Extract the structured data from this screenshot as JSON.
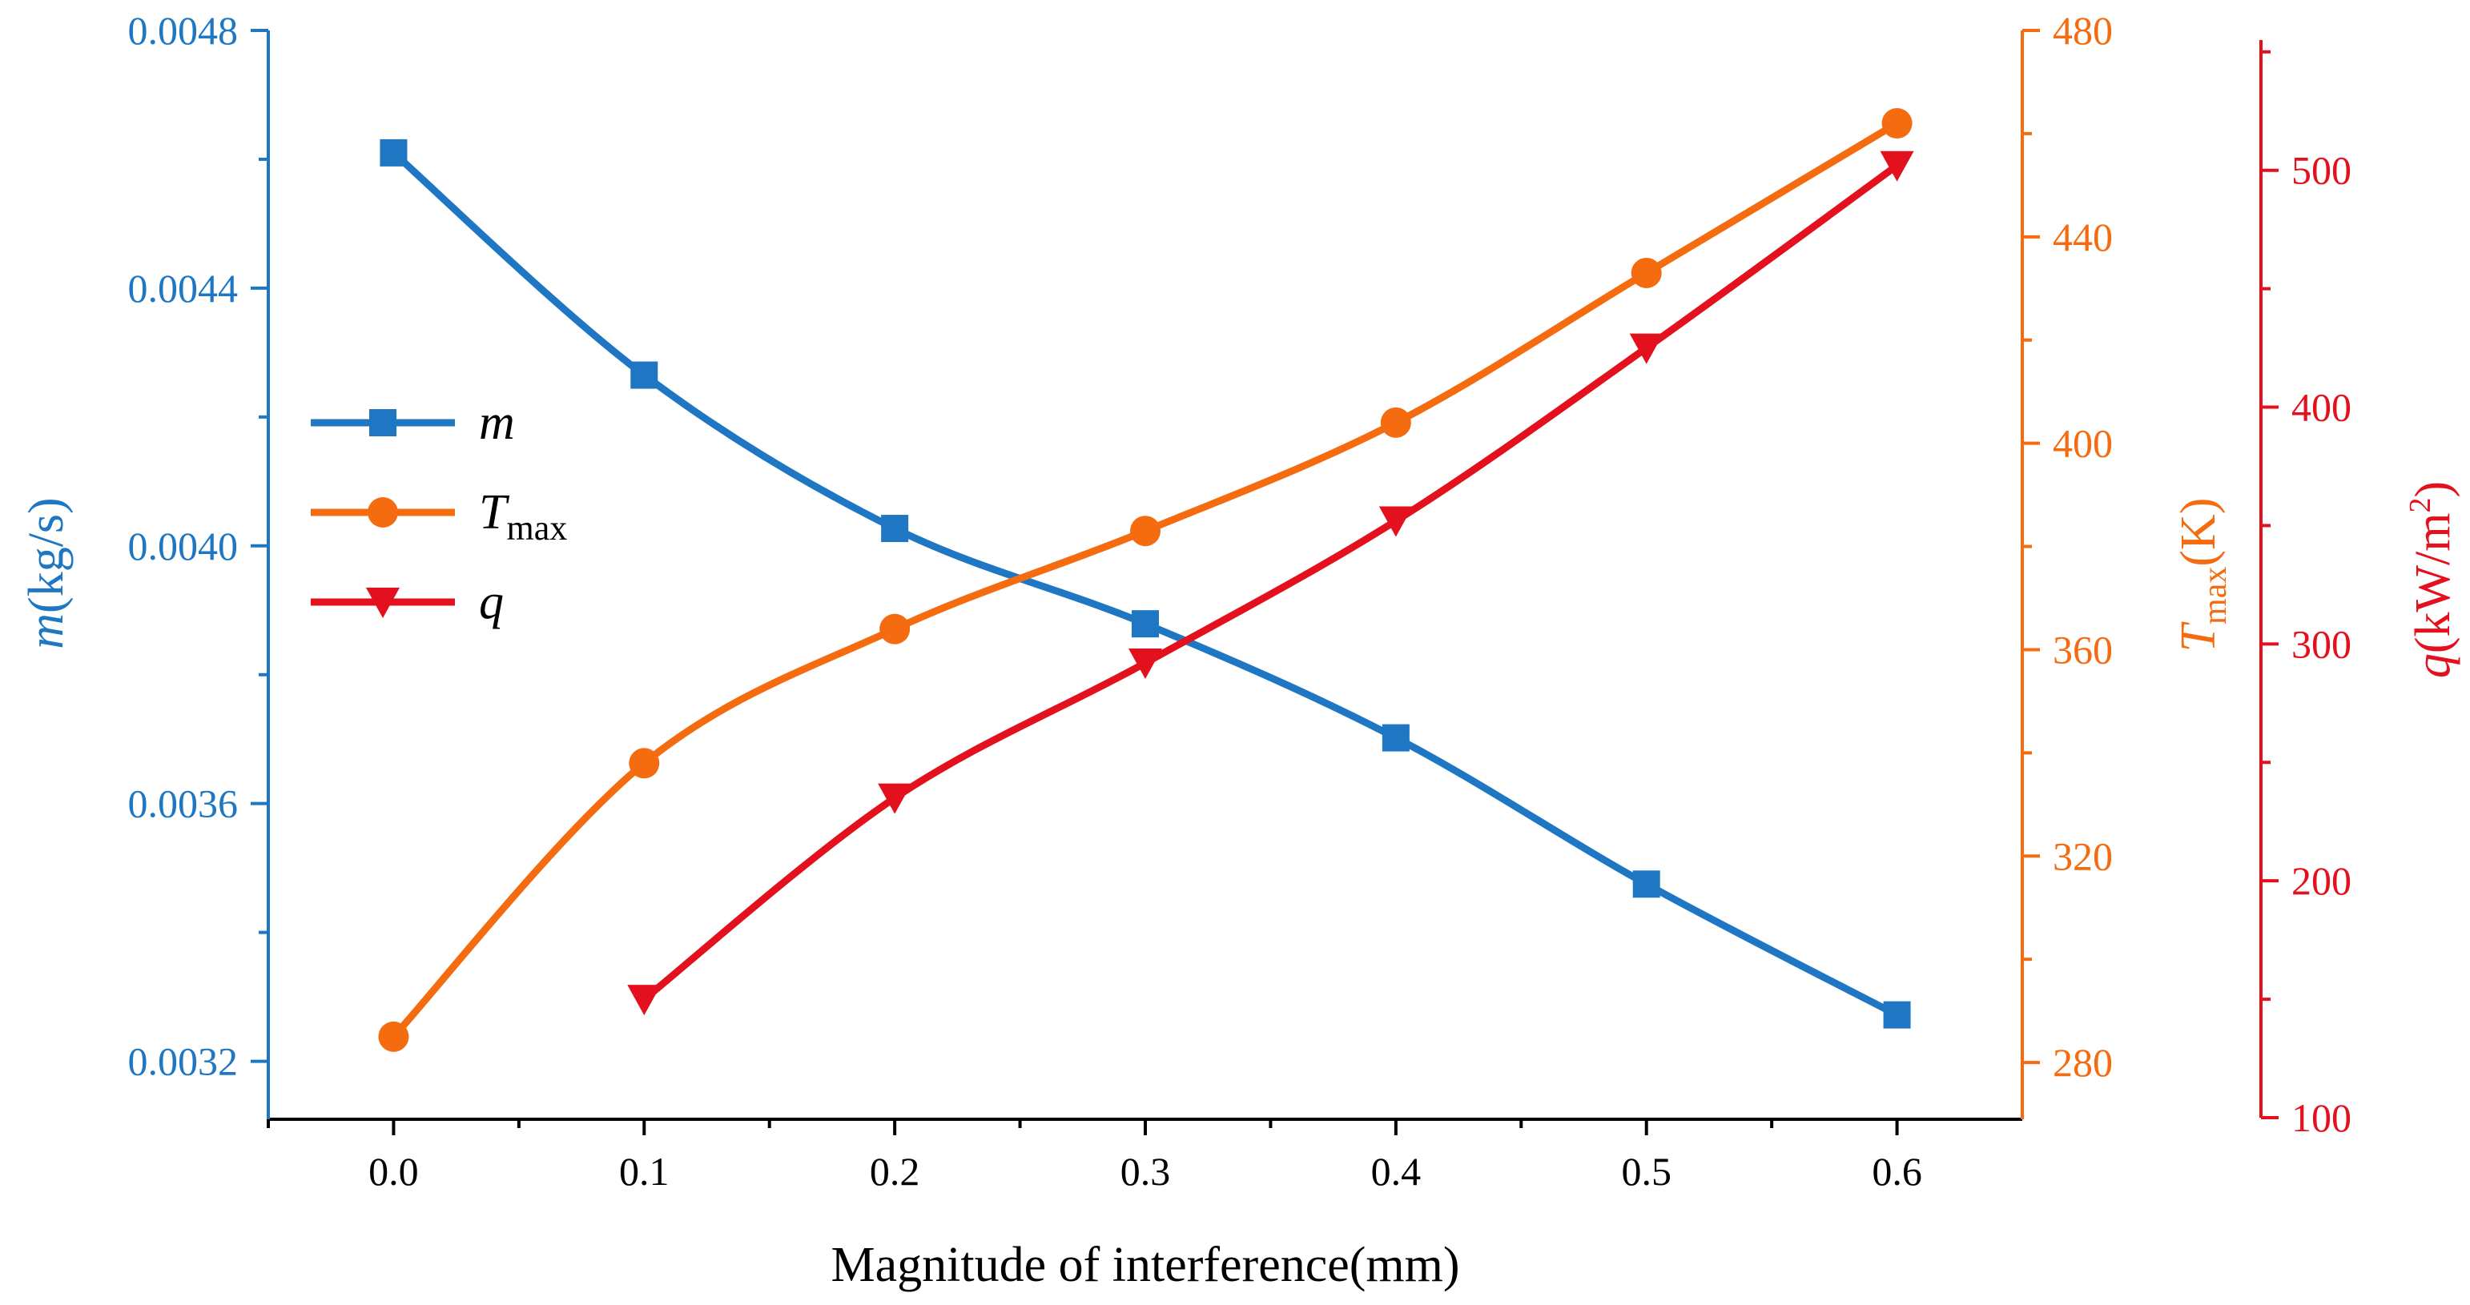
{
  "chart_data": {
    "type": "line",
    "title": "",
    "xlabel": "Magnitude of interference(mm)",
    "x": [
      0.0,
      0.1,
      0.2,
      0.3,
      0.4,
      0.5,
      0.6
    ],
    "x_tick_labels": [
      "0.0",
      "0.1",
      "0.2",
      "0.3",
      "0.4",
      "0.5",
      "0.6"
    ],
    "xlim": [
      -0.05,
      0.65
    ],
    "legend_position": "middle-left",
    "axes": {
      "left": {
        "label_symbol": "m",
        "label_unit": "(kg/s)",
        "ylim": [
          0.00311,
          0.0048
        ],
        "ticks": [
          0.0032,
          0.0036,
          0.004,
          0.0044,
          0.0048
        ],
        "tick_labels": [
          "0.0032",
          "0.0036",
          "0.0040",
          "0.0044",
          "0.0048"
        ],
        "color": "#1f77c4"
      },
      "right1": {
        "label_symbol": "T",
        "label_subscript": "max",
        "label_unit": "(K)",
        "ylim": [
          269,
          480
        ],
        "ticks": [
          280,
          320,
          360,
          400,
          440,
          480
        ],
        "tick_labels": [
          "280",
          "320",
          "360",
          "400",
          "440",
          "480"
        ],
        "color": "#f46b10"
      },
      "right2": {
        "label_symbol": "q",
        "label_unit": "(kW/m",
        "label_superscript": "2",
        "label_close": ")",
        "ylim": [
          100,
          555
        ],
        "ticks": [
          100,
          200,
          300,
          400,
          500
        ],
        "tick_labels": [
          "100",
          "200",
          "300",
          "400",
          "500"
        ],
        "color": "#e3101d"
      }
    },
    "series": [
      {
        "name": "m",
        "axis": "left",
        "marker": "square",
        "color": "#1f77c4",
        "x": [
          0.0,
          0.1,
          0.2,
          0.3,
          0.4,
          0.5,
          0.6
        ],
        "values": [
          0.00461,
          0.004265,
          0.004027,
          0.003879,
          0.003702,
          0.003475,
          0.003272
        ]
      },
      {
        "name": "T",
        "name_subscript": "max",
        "axis": "right1",
        "marker": "circle",
        "color": "#f46b10",
        "x": [
          0.0,
          0.1,
          0.2,
          0.3,
          0.4,
          0.5,
          0.6
        ],
        "values": [
          285,
          338,
          364,
          383,
          404,
          433,
          462
        ]
      },
      {
        "name": "q",
        "axis": "right2",
        "marker": "triangle-down",
        "color": "#e3101d",
        "x": [
          0.1,
          0.2,
          0.3,
          0.4,
          0.5,
          0.6
        ],
        "values": [
          150,
          235,
          292,
          352,
          425,
          502
        ]
      }
    ]
  }
}
